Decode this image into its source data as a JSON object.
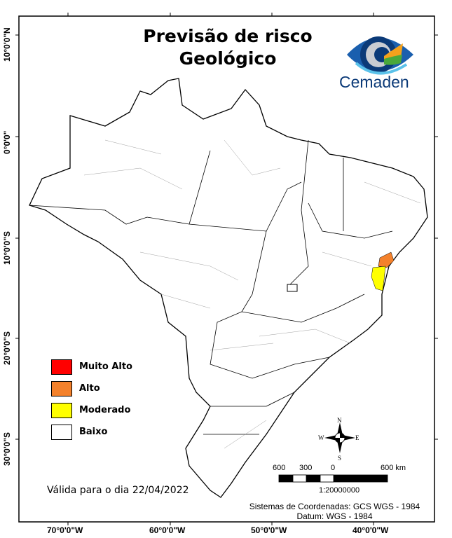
{
  "title_line1": "Previsão de risco",
  "title_line2": "Geológico",
  "logo": {
    "text": "Cemaden"
  },
  "legend": [
    {
      "label": "Muito Alto",
      "color": "#ff0000"
    },
    {
      "label": "Alto",
      "color": "#f4812b"
    },
    {
      "label": "Moderado",
      "color": "#ffff00"
    },
    {
      "label": "Baixo",
      "color": "#ffffff"
    }
  ],
  "validity": "Válida para o dia 22/04/2022",
  "compass": {
    "n": "N",
    "s": "S",
    "e": "E",
    "w": "W"
  },
  "scale": {
    "labels": [
      "600",
      "300",
      "0",
      "600 km"
    ],
    "ratio": "1:20000000"
  },
  "coord_system": "Sistemas de Coordenadas: GCS WGS - 1984",
  "datum": "Datum: WGS - 1984",
  "lat_labels": [
    "10°0'0\"N",
    "0°0'0\"",
    "10°0'0\"S",
    "20°0'0\"S",
    "30°0'0\"S"
  ],
  "lon_labels": [
    "70°0'0\"W",
    "60°0'0\"W",
    "50°0'0\"W",
    "40°0'0\"W"
  ]
}
